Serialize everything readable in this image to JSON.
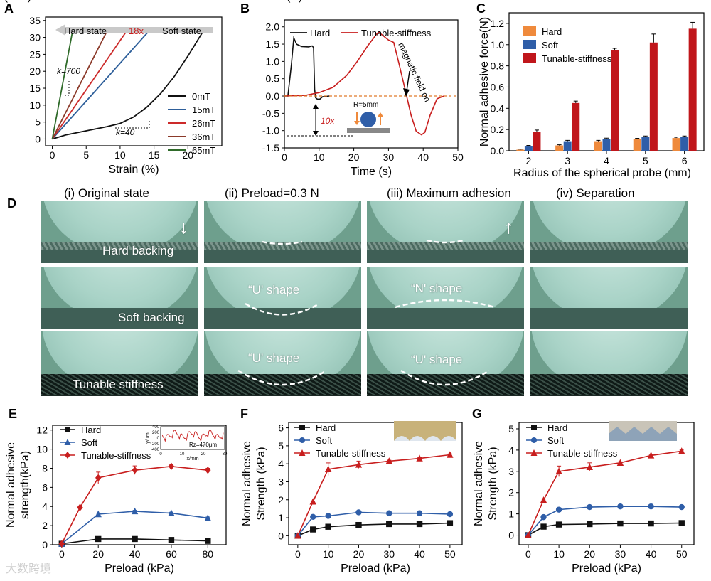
{
  "panels": {
    "A": {
      "label": "A",
      "chart_data": {
        "type": "line",
        "xlabel": "Strain (%)",
        "ylabel": "Stress (kPa)",
        "xlim": [
          -1,
          25
        ],
        "ylim": [
          -2,
          36
        ],
        "xticks": [
          0,
          5,
          10,
          15,
          20
        ],
        "yticks": [
          0,
          5,
          10,
          15,
          20,
          25,
          30,
          35
        ],
        "series": [
          {
            "name": "0mT",
            "color": "#111111",
            "x": [
              0,
              2,
              5,
              8,
              10,
              12,
              14,
              16,
              18,
              20,
              22.3
            ],
            "y": [
              0,
              1.2,
              2.4,
              3.6,
              4.6,
              6.5,
              9.5,
              13.5,
              18.5,
              24.5,
              32
            ]
          },
          {
            "name": "15mT",
            "color": "#2e5f9a",
            "x": [
              0,
              14.3
            ],
            "y": [
              0,
              32
            ]
          },
          {
            "name": "26mT",
            "color": "#cc2a2a",
            "x": [
              0,
              11.0
            ],
            "y": [
              0,
              32
            ]
          },
          {
            "name": "36mT",
            "color": "#8b3a2a",
            "x": [
              0,
              8.1
            ],
            "y": [
              0,
              32
            ]
          },
          {
            "name": "65mT",
            "color": "#2f6b2a",
            "x": [
              0,
              3.0
            ],
            "y": [
              0,
              32
            ]
          }
        ],
        "annotations": {
          "arrow_left": "Hard state",
          "arrow_mid": "18x",
          "arrow_right": "Soft state",
          "k_hard": "k=700",
          "k_soft": "k=40"
        }
      }
    },
    "B": {
      "label": "B",
      "chart_data": {
        "type": "line",
        "xlabel": "Time (s)",
        "ylabel": "Normal adhesive force (N)",
        "xlim": [
          0,
          50
        ],
        "ylim": [
          -1.5,
          2.2
        ],
        "xticks": [
          0,
          10,
          20,
          30,
          40,
          50
        ],
        "yticks": [
          -1.5,
          -1.0,
          -0.5,
          0.0,
          0.5,
          1.0,
          1.5,
          2.0
        ],
        "ytick_labels": [
          "-1.5",
          "-1.0",
          "-0.5",
          "0.0",
          "0.5",
          "1.0",
          "1.5",
          "2.0"
        ],
        "series": [
          {
            "name": "Hard",
            "color": "#111111",
            "x": [
              0,
              1,
              2,
              2.7,
              3.5,
              5,
              7,
              8,
              8.4,
              8.7,
              9,
              9.5,
              10.2,
              11,
              13
            ],
            "y": [
              0,
              0,
              0.9,
              1.68,
              1.5,
              1.43,
              1.42,
              1.45,
              1.4,
              0.2,
              -0.05,
              -0.09,
              -0.09,
              -0.02,
              0
            ]
          },
          {
            "name": "Tunable-stiffness",
            "color": "#c81e1e",
            "x": [
              0,
              6,
              10,
              14,
              18,
              21,
              24,
              26.5,
              27.3,
              28,
              30,
              31.5,
              33,
              35,
              36.5,
              38,
              39.5,
              40.5,
              42,
              44,
              46
            ],
            "y": [
              0,
              0.02,
              0.1,
              0.25,
              0.6,
              1.0,
              1.45,
              1.78,
              1.85,
              1.78,
              1.62,
              1.55,
              0.95,
              0.1,
              -0.55,
              -1.02,
              -1.12,
              -1.05,
              -0.55,
              -0.08,
              0
            ]
          }
        ],
        "annotations": {
          "fold": "10x",
          "probe": "R=5mm",
          "field": "magnetic field on"
        }
      }
    },
    "C": {
      "label": "C",
      "chart_data": {
        "type": "bar",
        "xlabel": "Radius of the spherical probe (mm)",
        "ylabel": "Normal adhesive force(N)",
        "categories": [
          "2",
          "3",
          "4",
          "5",
          "6"
        ],
        "ylim": [
          0,
          1.3
        ],
        "yticks": [
          0,
          0.2,
          0.4,
          0.6,
          0.8,
          1.0,
          1.2
        ],
        "ytick_labels": [
          "0.0",
          "0.2",
          "0.4",
          "0.6",
          "0.8",
          "1.0",
          "1.2"
        ],
        "series": [
          {
            "name": "Hard",
            "color": "#ef8a3c",
            "values": [
              0.01,
              0.05,
              0.09,
              0.11,
              0.12
            ],
            "errors": [
              0.005,
              0.006,
              0.008,
              0.007,
              0.008
            ]
          },
          {
            "name": "Soft",
            "color": "#2f5ea8",
            "values": [
              0.04,
              0.09,
              0.11,
              0.13,
              0.13
            ],
            "errors": [
              0.01,
              0.008,
              0.009,
              0.009,
              0.009
            ]
          },
          {
            "name": "Tunable-stiffness",
            "color": "#c0161b",
            "values": [
              0.18,
              0.45,
              0.95,
              1.02,
              1.15
            ],
            "errors": [
              0.015,
              0.018,
              0.015,
              0.08,
              0.06
            ]
          }
        ]
      }
    },
    "D": {
      "label": "D",
      "columns": [
        "(i)   Original state",
        "(ii)   Preload=0.3 N",
        "(iii)   Maximum adhesion",
        "(iv)   Separation"
      ],
      "rows": [
        "Hard backing",
        "Soft backing",
        "Tunable stiffness"
      ],
      "shape_labels": {
        "u_shape": "“U' shape",
        "n_shape": "“N' shape"
      }
    },
    "E": {
      "label": "E",
      "chart_data": {
        "type": "line",
        "xlabel": "Preload (kPa)",
        "ylabel": "Normal adhesive strength(kPa)",
        "xlim": [
          -5,
          90
        ],
        "ylim": [
          0,
          12.5
        ],
        "xticks": [
          0,
          20,
          40,
          60,
          80
        ],
        "yticks": [
          0,
          2,
          4,
          6,
          8,
          10,
          12
        ],
        "series": [
          {
            "name": "Hard",
            "color": "#111111",
            "marker": "square",
            "x": [
              0,
              20,
              40,
              60,
              80
            ],
            "y": [
              0.1,
              0.6,
              0.6,
              0.5,
              0.4
            ],
            "errors": [
              0,
              0.05,
              0.05,
              0.05,
              0.05
            ]
          },
          {
            "name": "Soft",
            "color": "#2f5ea8",
            "marker": "triangle",
            "x": [
              0,
              20,
              40,
              60,
              80
            ],
            "y": [
              0.1,
              3.2,
              3.5,
              3.3,
              2.8
            ],
            "errors": [
              0,
              0.1,
              0.1,
              0.1,
              0.1
            ]
          },
          {
            "name": "Tunable-stiffness",
            "color": "#c81e1e",
            "marker": "diamond",
            "x": [
              0,
              10,
              20,
              40,
              60,
              80
            ],
            "y": [
              0.1,
              3.9,
              7.0,
              7.8,
              8.2,
              7.8
            ],
            "errors": [
              0,
              0.1,
              0.6,
              0.45,
              0.15,
              0.2
            ]
          }
        ],
        "inset": {
          "ylabel": "y/μm",
          "xlabel": "x/mm",
          "note": "Rz=470μm",
          "yticks": [
            "-400",
            "-200",
            "0",
            "200",
            "400"
          ],
          "xticks": [
            "0",
            "10",
            "20",
            "30"
          ]
        }
      }
    },
    "F": {
      "label": "F",
      "chart_data": {
        "type": "line",
        "xlabel": "Preload (kPa)",
        "ylabel": "Normal adhesive Strength (kPa)",
        "xlim": [
          -3,
          54
        ],
        "ylim": [
          -0.5,
          6.3
        ],
        "xticks": [
          0,
          10,
          20,
          30,
          40,
          50
        ],
        "yticks": [
          0,
          1,
          2,
          3,
          4,
          5,
          6
        ],
        "series": [
          {
            "name": "Hard",
            "color": "#111111",
            "marker": "square",
            "x": [
              0,
              5,
              10,
              20,
              30,
              40,
              50
            ],
            "y": [
              0,
              0.35,
              0.5,
              0.6,
              0.65,
              0.65,
              0.7
            ]
          },
          {
            "name": "Soft",
            "color": "#2f5ea8",
            "marker": "circle",
            "x": [
              0,
              5,
              10,
              20,
              30,
              40,
              50
            ],
            "y": [
              0,
              1.05,
              1.1,
              1.3,
              1.25,
              1.25,
              1.2
            ]
          },
          {
            "name": "Tunable-stiffness",
            "color": "#c81e1e",
            "marker": "triangle",
            "x": [
              0,
              5,
              10,
              20,
              30,
              40,
              50
            ],
            "y": [
              0,
              1.9,
              3.7,
              3.95,
              4.15,
              4.3,
              4.5
            ],
            "errors": [
              0,
              0.15,
              0.35,
              0.2,
              0.05,
              0.05,
              0.05
            ]
          }
        ]
      }
    },
    "G": {
      "label": "G",
      "chart_data": {
        "type": "line",
        "xlabel": "Preload (kPa)",
        "ylabel": "Normal adhesive Strength (kPa)",
        "xlim": [
          -3,
          54
        ],
        "ylim": [
          -0.45,
          5.3
        ],
        "xticks": [
          0,
          10,
          20,
          30,
          40,
          50
        ],
        "yticks": [
          0,
          1,
          2,
          3,
          4,
          5
        ],
        "series": [
          {
            "name": "Hard",
            "color": "#111111",
            "marker": "square",
            "x": [
              0,
              5,
              10,
              20,
              30,
              40,
              50
            ],
            "y": [
              0,
              0.4,
              0.5,
              0.52,
              0.55,
              0.55,
              0.57
            ]
          },
          {
            "name": "Soft",
            "color": "#2f5ea8",
            "marker": "circle",
            "x": [
              0,
              5,
              10,
              20,
              30,
              40,
              50
            ],
            "y": [
              0,
              0.85,
              1.2,
              1.32,
              1.35,
              1.35,
              1.32
            ]
          },
          {
            "name": "Tunable-stiffness",
            "color": "#c81e1e",
            "marker": "triangle",
            "x": [
              0,
              5,
              10,
              20,
              30,
              40,
              50
            ],
            "y": [
              0,
              1.65,
              3.0,
              3.2,
              3.4,
              3.75,
              3.95
            ],
            "errors": [
              0,
              0.05,
              0.25,
              0.2,
              0.05,
              0.05,
              0.05
            ]
          }
        ]
      }
    }
  },
  "watermark": "大数跨境"
}
